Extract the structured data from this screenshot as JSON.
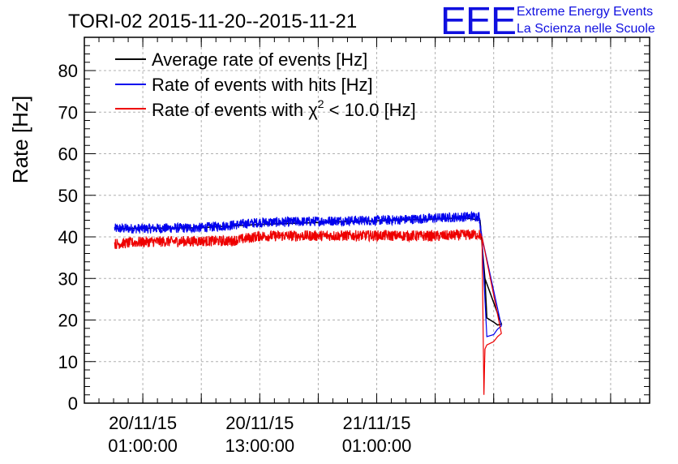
{
  "chart_data": {
    "type": "line",
    "title": "TORI-02 2015-11-20--2015-11-21",
    "ylabel": "Rate [Hz]",
    "xlabel": "",
    "ylim": [
      0,
      88
    ],
    "yticks": [
      0,
      10,
      20,
      30,
      40,
      50,
      60,
      70,
      80
    ],
    "xlim_hours": [
      -6,
      52
    ],
    "xticks": [
      {
        "hour": 0,
        "line1": "20/11/15",
        "line2": "01:00:00"
      },
      {
        "hour": 12,
        "line1": "20/11/15",
        "line2": "13:00:00"
      },
      {
        "hour": 24,
        "line1": "21/11/15",
        "line2": "01:00:00"
      }
    ],
    "x_axis_note": "hours since 20/11/15 01:00:00",
    "grid": true,
    "legend_position": "top-left",
    "series": [
      {
        "name": "Average rate of events [Hz]",
        "color": "#000000",
        "points": [
          [
            -2.9,
            42.0
          ],
          [
            6,
            42.2
          ],
          [
            12,
            43.0
          ],
          [
            20,
            43.6
          ],
          [
            30,
            44.3
          ],
          [
            33,
            44.6
          ],
          [
            34.6,
            44.0
          ],
          [
            35.1,
            30
          ],
          [
            35.3,
            20.5
          ],
          [
            36,
            19.5
          ],
          [
            36.4,
            18.8
          ],
          [
            36.8,
            19.0
          ]
        ]
      },
      {
        "name": "Rate of events with hits [Hz]",
        "color": "#0000ee",
        "points": [
          [
            -2.9,
            42.0
          ],
          [
            0,
            42.0
          ],
          [
            6,
            42.2
          ],
          [
            9,
            42.8
          ],
          [
            12,
            43.5
          ],
          [
            15,
            43.6
          ],
          [
            20,
            43.9
          ],
          [
            25,
            44.0
          ],
          [
            30,
            44.5
          ],
          [
            34.5,
            45.0
          ],
          [
            34.8,
            40
          ],
          [
            35.1,
            25
          ],
          [
            35.3,
            16.0
          ],
          [
            36,
            16.5
          ],
          [
            36.4,
            17.8
          ],
          [
            36.8,
            18.6
          ]
        ],
        "noise": 1.2
      },
      {
        "name": "Rate of events with χ² < 10.0 [Hz]",
        "legend_main": "Rate of events with χ",
        "legend_sup": "2",
        "legend_rest": " < 10.0 [Hz]",
        "color": "#ee0000",
        "points": [
          [
            -2.9,
            38.3
          ],
          [
            0,
            38.8
          ],
          [
            6,
            39.0
          ],
          [
            9,
            39.0
          ],
          [
            12,
            40.2
          ],
          [
            20,
            40.3
          ],
          [
            25,
            40.3
          ],
          [
            30,
            40.2
          ],
          [
            34.5,
            40.6
          ],
          [
            34.8,
            40
          ],
          [
            35.0,
            2
          ],
          [
            35.1,
            13
          ],
          [
            35.3,
            14.0
          ],
          [
            36,
            14.8
          ],
          [
            36.4,
            16.0
          ],
          [
            36.8,
            16.8
          ]
        ],
        "noise": 1.3
      }
    ]
  },
  "logo": {
    "mark": "EEE",
    "line1": "Extreme Energy Events",
    "line2": "La Scienza nelle Scuole"
  }
}
